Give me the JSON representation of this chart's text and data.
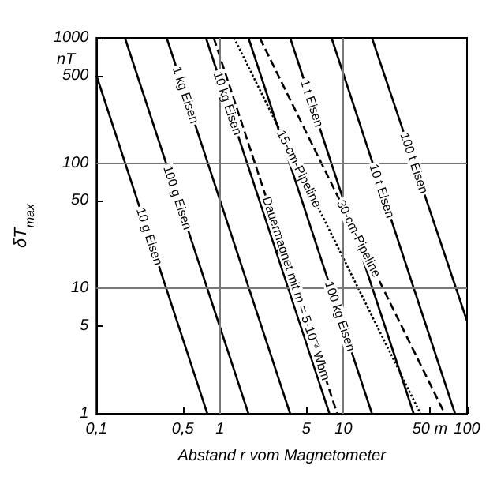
{
  "chart_data": {
    "type": "line",
    "xlabel": "Abstand r vom Magnetometer",
    "ylabel": "δT$_{max}$",
    "annotations": [
      "nT"
    ],
    "log": "xy",
    "grid": true,
    "marker": "none",
    "xlim": [
      0.1,
      100
    ],
    "xticks": [
      {
        "value": 0.1,
        "label": "0,1"
      },
      {
        "value": 0.5,
        "label": "0,5"
      },
      1,
      5,
      10,
      {
        "value": 50,
        "label": "50 m"
      },
      100
    ],
    "ylim": [
      1,
      1000
    ],
    "yticks": [
      1,
      5,
      10,
      50,
      100,
      500,
      1000
    ],
    "series": [
      {
        "name": "10 g Eisen",
        "color": "#000000",
        "line_style": "solid",
        "x": [
          0.1,
          0.79
        ],
        "values": [
          500,
          1
        ]
      },
      {
        "name": "100 g Eisen",
        "color": "#000000",
        "line_style": "solid",
        "x": [
          0.17,
          1.7
        ],
        "values": [
          1000,
          1
        ]
      },
      {
        "name": "1 kg Eisen",
        "color": "#000000",
        "line_style": "solid",
        "x": [
          0.37,
          3.7
        ],
        "values": [
          1000,
          1
        ]
      },
      {
        "name": "Dauermagnet mit m = 5·10⁻³ Wbm",
        "color": "#000000",
        "line_style": "dashed",
        "x": [
          0.89,
          8.9
        ],
        "values": [
          1000,
          1
        ]
      },
      {
        "name": "10 kg Eisen",
        "color": "#000000",
        "line_style": "solid",
        "x": [
          0.77,
          7.7
        ],
        "values": [
          1000,
          1
        ]
      },
      {
        "name": "100 kg Eisen",
        "color": "#000000",
        "line_style": "solid",
        "x": [
          1.7,
          17
        ],
        "values": [
          1000,
          1
        ]
      },
      {
        "name": "15-cm-Pipeline",
        "color": "#000000",
        "line_style": "dotted",
        "x": [
          1.3,
          42
        ],
        "values": [
          1000,
          1
        ]
      },
      {
        "name": "1 t Eisen",
        "color": "#000000",
        "line_style": "solid",
        "x": [
          3.7,
          37
        ],
        "values": [
          1000,
          1
        ]
      },
      {
        "name": "30-cm-Pipeline",
        "color": "#000000",
        "line_style": "dashed",
        "x": [
          2.1,
          66
        ],
        "values": [
          1000,
          1
        ]
      },
      {
        "name": "10 t Eisen",
        "color": "#000000",
        "line_style": "solid",
        "x": [
          8,
          80
        ],
        "values": [
          1000,
          1
        ]
      },
      {
        "name": "100 t Eisen",
        "color": "#000000",
        "line_style": "solid",
        "x": [
          17,
          100
        ],
        "values": [
          1000,
          5.5
        ]
      }
    ]
  }
}
